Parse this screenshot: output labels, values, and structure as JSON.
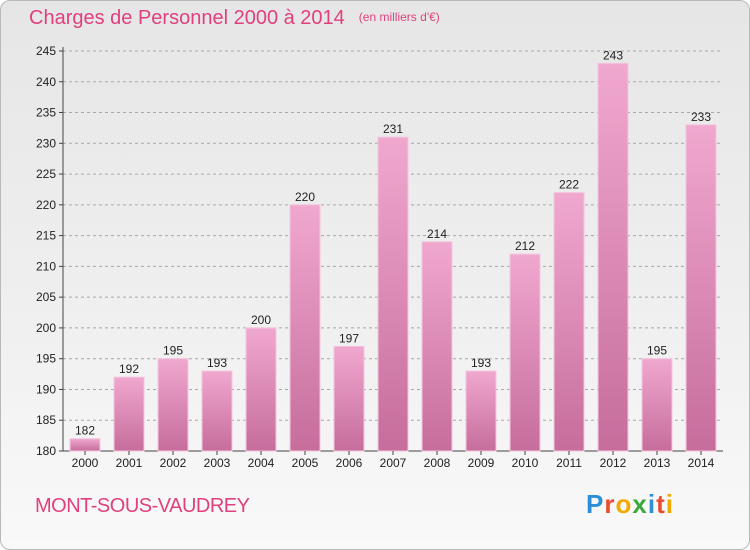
{
  "title": "Charges de Personnel 2000 à 2014",
  "subtitle": "(en milliers d'€)",
  "town": "MONT-SOUS-VAUDREY",
  "logo": {
    "letters": [
      "P",
      "r",
      "o",
      "x",
      "i",
      "t",
      "i"
    ],
    "colors": [
      "#2d8fd8",
      "#e94c2f",
      "#f2a900",
      "#3aa83a",
      "#2d8fd8",
      "#e94c2f",
      "#f2a900"
    ]
  },
  "colors": {
    "accent": "#e0407e",
    "bar_top": "#f0a8cf",
    "bar_bottom": "#c66d9c"
  },
  "chart_data": {
    "type": "bar",
    "title": "Charges de Personnel 2000 à 2014",
    "subtitle": "(en milliers d'€)",
    "categories": [
      "2000",
      "2001",
      "2002",
      "2003",
      "2004",
      "2005",
      "2006",
      "2007",
      "2008",
      "2009",
      "2010",
      "2011",
      "2012",
      "2013",
      "2014"
    ],
    "values": [
      182,
      192,
      195,
      193,
      200,
      220,
      197,
      231,
      214,
      193,
      212,
      222,
      243,
      195,
      233
    ],
    "ylim": [
      180,
      245
    ],
    "yticks": [
      180,
      185,
      190,
      195,
      200,
      205,
      210,
      215,
      220,
      225,
      230,
      235,
      240,
      245
    ],
    "grid": true,
    "xlabel": "",
    "ylabel": ""
  }
}
